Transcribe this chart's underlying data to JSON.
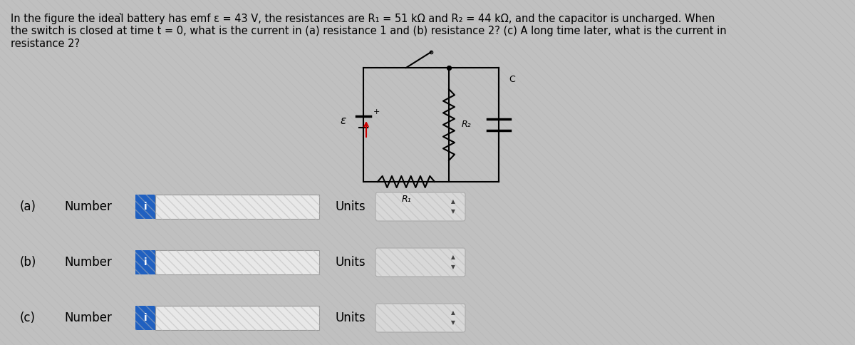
{
  "title_text_line1": "In the figure the ideal̀ battery has emf ε = 43 V, the resistances are R₁ = 51 kΩ and R₂ = 44 kΩ, and the capacitor is uncharged. When",
  "title_text_line2": "the switch is closed at time t = 0, what is the current in (a) resistance 1 and (b) resistance 2? (c) A long time later, what is the current in",
  "title_text_line3": "resistance 2?",
  "bg_color": "#c0c0c0",
  "rows": [
    {
      "label": "(a)",
      "sub": "Number",
      "units_label": "Units"
    },
    {
      "label": "(b)",
      "sub": "Number",
      "units_label": "Units"
    },
    {
      "label": "(c)",
      "sub": "Number",
      "units_label": "Units"
    }
  ],
  "input_box_color": "#e8e8e8",
  "input_box_border": "#999999",
  "info_btn_color": "#2060c0",
  "info_btn_text": "i",
  "units_box_color": "#d8d8d8",
  "units_box_border": "#aaaaaa",
  "title_fontsize": 10.5,
  "label_fontsize": 12,
  "text_color": "#000000",
  "circuit_color": "#000000",
  "red_arrow_color": "#cc0000"
}
